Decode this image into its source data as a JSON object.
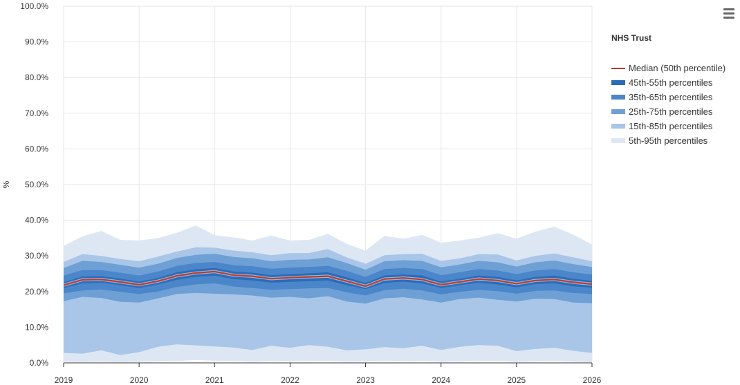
{
  "chart_data": {
    "type": "area",
    "title": "",
    "xlabel": "",
    "ylabel": "%",
    "ylim": [
      0,
      100
    ],
    "xlim": [
      2019,
      2026
    ],
    "y_ticks": [
      "0.0%",
      "10.0%",
      "20.0%",
      "30.0%",
      "40.0%",
      "50.0%",
      "60.0%",
      "70.0%",
      "80.0%",
      "90.0%",
      "100.0%"
    ],
    "x_ticks": [
      "2019",
      "2020",
      "2021",
      "2022",
      "2023",
      "2024",
      "2025",
      "2026"
    ],
    "grid": true,
    "legend_position": "right",
    "legend_title": "NHS Trust",
    "x": [
      "2019-01",
      "2019-04",
      "2019-07",
      "2019-10",
      "2020-01",
      "2020-04",
      "2020-07",
      "2020-10",
      "2021-01",
      "2021-04",
      "2021-07",
      "2021-10",
      "2022-01",
      "2022-04",
      "2022-07",
      "2022-10",
      "2023-01",
      "2023-04",
      "2023-07",
      "2023-10",
      "2024-01",
      "2024-04",
      "2024-07",
      "2024-10",
      "2025-01",
      "2025-04",
      "2025-07",
      "2025-10",
      "2026-01"
    ],
    "series": [
      {
        "name": "Median (50th percentile)",
        "kind": "line",
        "color": "#c0392b",
        "values": [
          21.8,
          23.3,
          23.4,
          22.7,
          21.9,
          22.9,
          24.4,
          25.2,
          25.6,
          24.6,
          24.3,
          23.6,
          23.9,
          24.1,
          24.3,
          22.9,
          21.5,
          23.5,
          23.8,
          23.4,
          21.9,
          22.7,
          23.5,
          23.1,
          22.2,
          23.1,
          23.4,
          22.6,
          22.1
        ]
      },
      {
        "name": "45th-55th percentiles",
        "kind": "band",
        "color": "#2a6cb8",
        "opacity": 1.0,
        "low": [
          21.0,
          22.3,
          22.5,
          21.8,
          21.0,
          22.0,
          23.3,
          24.1,
          24.5,
          23.5,
          23.1,
          22.5,
          22.7,
          22.9,
          23.1,
          21.8,
          20.7,
          22.4,
          22.8,
          22.3,
          21.0,
          21.8,
          22.5,
          22.0,
          21.2,
          22.1,
          22.3,
          21.5,
          21.1
        ],
        "high": [
          22.6,
          24.2,
          24.3,
          23.6,
          22.8,
          23.8,
          25.4,
          26.2,
          26.6,
          25.6,
          25.3,
          24.6,
          24.9,
          25.1,
          25.4,
          24.0,
          22.4,
          24.5,
          24.8,
          24.5,
          22.8,
          23.6,
          24.5,
          24.1,
          23.1,
          24.1,
          24.5,
          23.6,
          23.0
        ]
      },
      {
        "name": "35th-65th percentiles",
        "kind": "band",
        "color": "#4a86c9",
        "opacity": 1.0,
        "low": [
          19.5,
          20.3,
          20.6,
          19.9,
          19.3,
          20.0,
          21.3,
          22.0,
          22.3,
          21.4,
          21.0,
          20.5,
          20.7,
          20.9,
          21.0,
          19.8,
          18.9,
          20.4,
          20.8,
          20.3,
          19.2,
          19.9,
          20.5,
          20.1,
          19.4,
          20.2,
          20.3,
          19.6,
          19.3
        ],
        "high": [
          24.5,
          26.0,
          26.0,
          25.3,
          24.5,
          25.6,
          27.2,
          28.0,
          28.3,
          27.4,
          27.1,
          26.4,
          26.7,
          26.9,
          27.2,
          25.8,
          24.1,
          26.3,
          26.6,
          26.3,
          24.6,
          25.4,
          26.3,
          25.9,
          24.9,
          25.9,
          26.3,
          25.4,
          24.8
        ]
      },
      {
        "name": "25th-75th percentiles",
        "kind": "band",
        "color": "#6ea0d6",
        "opacity": 1.0,
        "low": [
          17.3,
          18.5,
          18.2,
          17.1,
          16.9,
          18.1,
          19.3,
          19.6,
          19.4,
          19.2,
          18.9,
          18.3,
          18.5,
          18.1,
          18.7,
          17.2,
          16.6,
          18.1,
          18.4,
          17.8,
          16.9,
          17.9,
          18.3,
          17.7,
          17.2,
          18.0,
          17.9,
          16.9,
          16.7
        ],
        "high": [
          26.6,
          28.6,
          28.3,
          27.5,
          26.7,
          27.8,
          29.4,
          30.3,
          30.6,
          29.7,
          29.3,
          28.5,
          28.9,
          29.0,
          29.6,
          28.0,
          26.1,
          28.5,
          28.8,
          28.6,
          26.8,
          27.6,
          28.6,
          28.2,
          27.0,
          28.2,
          28.7,
          27.7,
          26.9
        ]
      },
      {
        "name": "15th-85th percentiles",
        "kind": "band",
        "color": "#a9c6e8",
        "opacity": 1.0,
        "low": [
          2.8,
          2.6,
          3.5,
          2.2,
          3.0,
          4.5,
          5.2,
          4.9,
          4.6,
          4.3,
          3.6,
          4.8,
          4.2,
          5.0,
          4.5,
          3.5,
          3.8,
          4.4,
          4.1,
          4.8,
          3.6,
          4.5,
          5.0,
          4.8,
          3.3,
          3.9,
          4.2,
          3.4,
          2.8
        ],
        "high": [
          28.3,
          30.5,
          30.0,
          29.1,
          28.5,
          29.8,
          31.2,
          32.4,
          32.3,
          31.5,
          31.0,
          30.2,
          30.8,
          30.8,
          31.9,
          29.6,
          27.8,
          30.2,
          30.5,
          30.6,
          28.6,
          29.3,
          30.5,
          30.4,
          28.7,
          30.0,
          30.7,
          29.6,
          28.5
        ]
      },
      {
        "name": "5th-95th percentiles",
        "kind": "band",
        "color": "#dde7f4",
        "opacity": 1.0,
        "low": [
          0.3,
          0.2,
          0.3,
          0.2,
          0.3,
          0.4,
          0.5,
          0.8,
          0.6,
          0.5,
          0.3,
          0.5,
          0.4,
          0.6,
          0.5,
          0.3,
          0.4,
          0.5,
          0.4,
          0.5,
          0.3,
          0.4,
          0.5,
          0.5,
          0.3,
          0.4,
          0.5,
          0.3,
          0.2
        ],
        "high": [
          32.8,
          35.5,
          37.0,
          34.5,
          34.3,
          35.0,
          36.5,
          38.5,
          35.8,
          35.2,
          34.3,
          35.7,
          34.3,
          34.5,
          36.2,
          33.4,
          31.5,
          35.6,
          34.8,
          35.9,
          33.7,
          34.3,
          35.1,
          36.4,
          34.8,
          36.8,
          38.2,
          36.0,
          33.2
        ]
      }
    ]
  },
  "menu_icon": "hamburger-menu-icon"
}
